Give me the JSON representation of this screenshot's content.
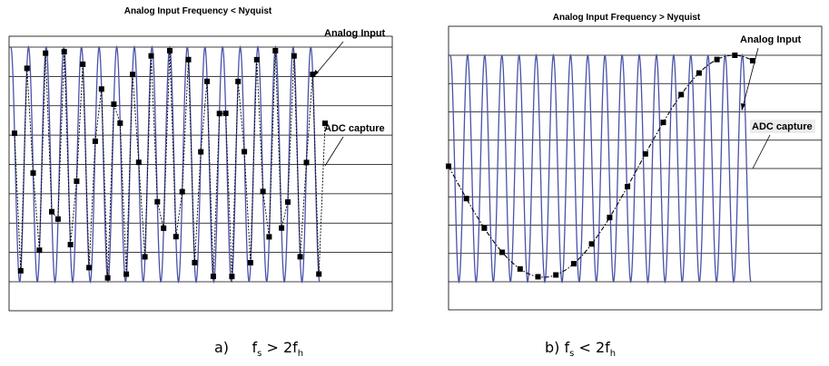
{
  "chart_data": [
    {
      "type": "line",
      "title": "Analog Input Frequency < Nyquist",
      "caption": {
        "prefix": "a)",
        "rel": ">",
        "f": "f",
        "s": "s",
        "n": "2f",
        "h": "h"
      },
      "grid": true,
      "ylim": [
        -1,
        1
      ],
      "series": [
        {
          "name": "Analog Input",
          "color": "#4a52a8",
          "cycles": 17.5
        },
        {
          "name": "ADC capture",
          "color": "#000000",
          "points": 51
        }
      ],
      "annotations": [
        "Analog Input",
        "ADC capture"
      ]
    },
    {
      "type": "line",
      "title": "Analog Input Frequency > Nyquist",
      "caption": {
        "prefix": "b)",
        "rel": "<",
        "f": "f",
        "s": "s",
        "n": "2f",
        "h": "h"
      },
      "grid": true,
      "ylim": [
        -1,
        1
      ],
      "series": [
        {
          "name": "Analog Input",
          "color": "#4a52a8",
          "cycles": 17.5
        },
        {
          "name": "ADC capture",
          "color": "#000000",
          "points": 18,
          "alias_cycles": 0.8
        }
      ],
      "annotations": [
        "Analog Input",
        "ADC capture"
      ]
    }
  ]
}
